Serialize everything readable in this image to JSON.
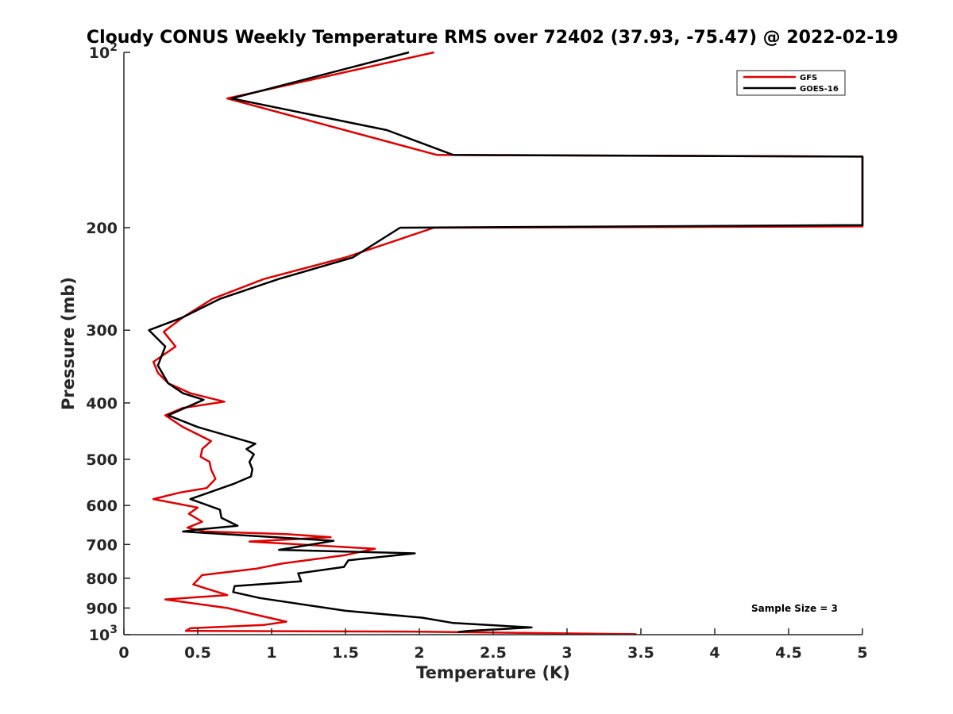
{
  "chart_data": {
    "type": "line",
    "title": "Cloudy CONUS Weekly Temperature RMS over 72402 (37.93, -75.47) @ 2022-02-19",
    "xlabel": "Temperature (K)",
    "ylabel": "Pressure (mb)",
    "xlim": [
      0,
      5
    ],
    "ylim": [
      100,
      1000
    ],
    "y_scale": "log",
    "y_reversed": true,
    "grid": false,
    "legend_placement": "top-right",
    "x_ticks": [
      {
        "value": 0,
        "label": "0"
      },
      {
        "value": 0.5,
        "label": "0.5"
      },
      {
        "value": 1,
        "label": "1"
      },
      {
        "value": 1.5,
        "label": "1.5"
      },
      {
        "value": 2,
        "label": "2"
      },
      {
        "value": 2.5,
        "label": "2.5"
      },
      {
        "value": 3,
        "label": "3"
      },
      {
        "value": 3.5,
        "label": "3.5"
      },
      {
        "value": 4,
        "label": "4"
      },
      {
        "value": 4.5,
        "label": "4.5"
      },
      {
        "value": 5,
        "label": "5"
      }
    ],
    "y_ticks": [
      {
        "value": 100,
        "base": "10",
        "exp": "2"
      },
      {
        "value": 200,
        "label": "200"
      },
      {
        "value": 300,
        "label": "300"
      },
      {
        "value": 400,
        "label": "400"
      },
      {
        "value": 500,
        "label": "500"
      },
      {
        "value": 600,
        "label": "600"
      },
      {
        "value": 700,
        "label": "700"
      },
      {
        "value": 800,
        "label": "800"
      },
      {
        "value": 900,
        "label": "900"
      },
      {
        "value": 1000,
        "base": "10",
        "exp": "3"
      }
    ],
    "series": [
      {
        "name": "GFS",
        "color": "#e00000",
        "points": [
          [
            2.1,
            100
          ],
          [
            0.7,
            120
          ],
          [
            2.12,
            150
          ],
          [
            5.0,
            151
          ],
          [
            5.0,
            199
          ],
          [
            2.1,
            200
          ],
          [
            1.5,
            225
          ],
          [
            0.95,
            245
          ],
          [
            0.6,
            265
          ],
          [
            0.4,
            285
          ],
          [
            0.27,
            302
          ],
          [
            0.35,
            320
          ],
          [
            0.2,
            340
          ],
          [
            0.23,
            355
          ],
          [
            0.3,
            370
          ],
          [
            0.45,
            385
          ],
          [
            0.68,
            398
          ],
          [
            0.4,
            408
          ],
          [
            0.28,
            420
          ],
          [
            0.4,
            440
          ],
          [
            0.59,
            465
          ],
          [
            0.53,
            480
          ],
          [
            0.52,
            495
          ],
          [
            0.58,
            505
          ],
          [
            0.59,
            520
          ],
          [
            0.62,
            540
          ],
          [
            0.56,
            560
          ],
          [
            0.38,
            570
          ],
          [
            0.2,
            585
          ],
          [
            0.5,
            605
          ],
          [
            0.44,
            620
          ],
          [
            0.53,
            640
          ],
          [
            0.43,
            655
          ],
          [
            0.55,
            665
          ],
          [
            1.1,
            672
          ],
          [
            1.4,
            680
          ],
          [
            0.85,
            692
          ],
          [
            1.7,
            712
          ],
          [
            1.5,
            730
          ],
          [
            1.07,
            755
          ],
          [
            0.9,
            770
          ],
          [
            0.53,
            790
          ],
          [
            0.47,
            820
          ],
          [
            0.7,
            855
          ],
          [
            0.28,
            870
          ],
          [
            0.7,
            900
          ],
          [
            0.9,
            925
          ],
          [
            1.1,
            950
          ],
          [
            0.95,
            962
          ],
          [
            0.45,
            975
          ],
          [
            0.42,
            985
          ],
          [
            2.0,
            988
          ],
          [
            3.47,
            998
          ]
        ]
      },
      {
        "name": "GOES-16",
        "color": "#000000",
        "points": [
          [
            1.93,
            100
          ],
          [
            0.73,
            120
          ],
          [
            1.78,
            136
          ],
          [
            2.23,
            150
          ],
          [
            5.0,
            151
          ],
          [
            5.0,
            198
          ],
          [
            1.87,
            200
          ],
          [
            1.55,
            225
          ],
          [
            1.05,
            245
          ],
          [
            0.65,
            265
          ],
          [
            0.4,
            285
          ],
          [
            0.17,
            300
          ],
          [
            0.28,
            320
          ],
          [
            0.23,
            345
          ],
          [
            0.3,
            370
          ],
          [
            0.4,
            385
          ],
          [
            0.54,
            395
          ],
          [
            0.3,
            420
          ],
          [
            0.5,
            440
          ],
          [
            0.89,
            470
          ],
          [
            0.83,
            480
          ],
          [
            0.88,
            490
          ],
          [
            0.85,
            505
          ],
          [
            0.87,
            520
          ],
          [
            0.86,
            535
          ],
          [
            0.75,
            550
          ],
          [
            0.45,
            585
          ],
          [
            0.65,
            610
          ],
          [
            0.66,
            630
          ],
          [
            0.77,
            650
          ],
          [
            0.5,
            660
          ],
          [
            0.4,
            665
          ],
          [
            1.42,
            690
          ],
          [
            1.05,
            715
          ],
          [
            1.97,
            725
          ],
          [
            1.52,
            745
          ],
          [
            1.49,
            765
          ],
          [
            1.18,
            785
          ],
          [
            1.2,
            810
          ],
          [
            0.75,
            825
          ],
          [
            0.74,
            845
          ],
          [
            0.92,
            865
          ],
          [
            1.5,
            910
          ],
          [
            2.02,
            935
          ],
          [
            2.23,
            955
          ],
          [
            2.76,
            972
          ],
          [
            2.33,
            985
          ],
          [
            2.26,
            990
          ]
        ]
      }
    ],
    "legend": [
      {
        "name": "GFS",
        "color": "#e00000"
      },
      {
        "name": "GOES-16",
        "color": "#000000"
      }
    ],
    "annotation": "Sample Size = 3"
  }
}
